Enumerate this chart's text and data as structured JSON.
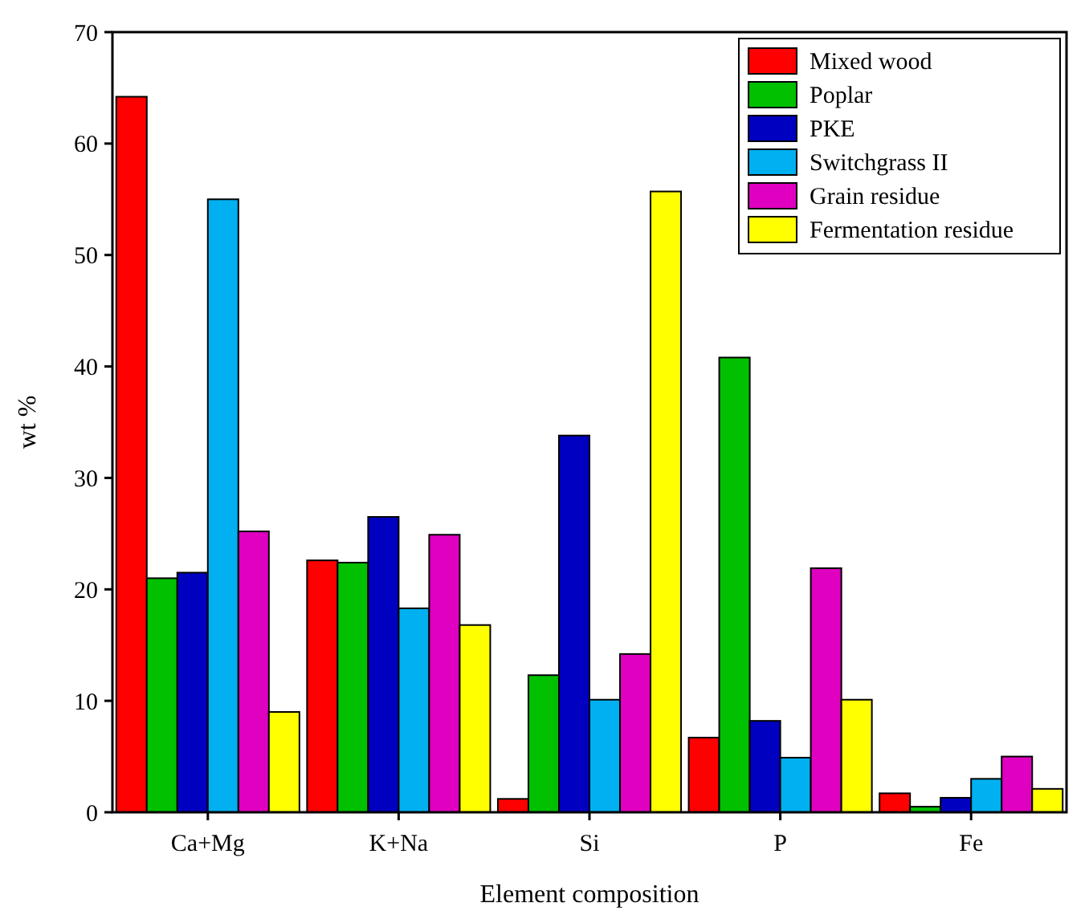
{
  "chart_data": {
    "type": "bar",
    "xlabel": "Element composition",
    "ylabel": "wt %",
    "categories": [
      "Ca+Mg",
      "K+Na",
      "Si",
      "P",
      "Fe"
    ],
    "series": [
      {
        "name": "Mixed wood",
        "color": "#ff0000",
        "values": [
          64.2,
          22.6,
          1.2,
          6.7,
          1.7
        ]
      },
      {
        "name": "Poplar",
        "color": "#00c000",
        "values": [
          21,
          22.4,
          12.3,
          40.8,
          0.5
        ]
      },
      {
        "name": "PKE",
        "color": "#0000c0",
        "values": [
          21.5,
          26.5,
          33.8,
          8.2,
          1.3
        ]
      },
      {
        "name": "Switchgrass II",
        "color": "#00b0f0",
        "values": [
          55,
          18.3,
          10.1,
          4.9,
          3
        ]
      },
      {
        "name": "Grain residue",
        "color": "#e000c0",
        "values": [
          25.2,
          24.9,
          14.2,
          21.9,
          5
        ]
      },
      {
        "name": "Fermentation residue",
        "color": "#ffff00",
        "values": [
          9,
          16.8,
          55.7,
          10.1,
          2.1
        ]
      }
    ],
    "ylim": [
      0,
      70
    ],
    "yticks": [
      0,
      10,
      20,
      30,
      40,
      50,
      60,
      70
    ],
    "legend": "top right"
  }
}
